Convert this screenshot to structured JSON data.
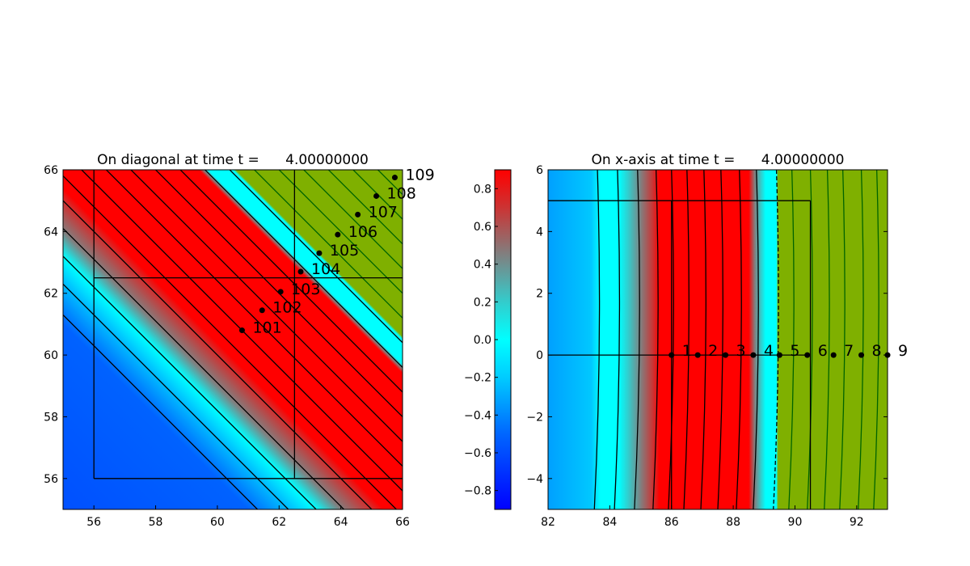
{
  "chart_data": [
    {
      "type": "heatmap",
      "title": "On diagonal at time t =      4.00000000",
      "xlim": [
        55,
        66
      ],
      "ylim": [
        55,
        66
      ],
      "xticks": [
        "56",
        "58",
        "60",
        "62",
        "64",
        "66"
      ],
      "xtick_values": [
        56,
        58,
        60,
        62,
        64,
        66
      ],
      "yticks": [
        "56",
        "58",
        "60",
        "62",
        "64",
        "66"
      ],
      "ytick_values": [
        56,
        58,
        60,
        62,
        64,
        66
      ],
      "field": "bands of constant x+y: blue below ~117, cyan ~118, red ~120-125.5, cyan ~126, green above ~126.5",
      "contour_levels_x_plus_y": [
        116.3,
        117.3,
        118.2,
        119.1,
        120.0,
        120.8,
        121.6,
        122.4,
        123.2,
        124.0,
        124.8,
        125.6,
        126.4,
        127.2,
        128.0,
        128.8,
        129.6,
        130.4,
        131.2
      ],
      "grid_lines": {
        "x": [
          56,
          62.5
        ],
        "y": [
          56,
          62.5
        ],
        "span": [
          56,
          66
        ]
      },
      "points": [
        {
          "label": "101",
          "x": 60.8,
          "y": 60.8
        },
        {
          "label": "102",
          "x": 61.45,
          "y": 61.45
        },
        {
          "label": "103",
          "x": 62.05,
          "y": 62.05
        },
        {
          "label": "104",
          "x": 62.7,
          "y": 62.7
        },
        {
          "label": "105",
          "x": 63.3,
          "y": 63.3
        },
        {
          "label": "106",
          "x": 63.9,
          "y": 63.9
        },
        {
          "label": "107",
          "x": 64.55,
          "y": 64.55
        },
        {
          "label": "108",
          "x": 65.15,
          "y": 65.15
        },
        {
          "label": "109",
          "x": 65.75,
          "y": 65.75
        }
      ]
    },
    {
      "type": "heatmap",
      "title": "On x-axis at time t =      4.00000000",
      "xlim": [
        82,
        93
      ],
      "ylim": [
        -5,
        6
      ],
      "xticks": [
        "82",
        "84",
        "86",
        "88",
        "90",
        "92"
      ],
      "xtick_values": [
        82,
        84,
        86,
        88,
        90,
        92
      ],
      "yticks": [
        "6",
        "4",
        "2",
        "0",
        "−2",
        "−4"
      ],
      "ytick_values": [
        6,
        4,
        2,
        0,
        -2,
        -4
      ],
      "contour_x_at_y0": [
        83.65,
        84.3,
        84.95,
        85.55,
        86.05,
        86.55,
        87.1,
        87.65,
        88.25,
        88.8,
        89.45,
        89.95,
        90.55,
        91.1,
        91.6,
        92.2,
        92.7
      ],
      "grid_lines": {
        "x": [
          86,
          90.5
        ],
        "y": [
          0,
          5
        ],
        "span_x": [
          82,
          90.5
        ],
        "span_y": [
          -5,
          5
        ]
      },
      "points": [
        {
          "label": "1",
          "x": 86.0,
          "y": 0
        },
        {
          "label": "2",
          "x": 86.85,
          "y": 0
        },
        {
          "label": "3",
          "x": 87.75,
          "y": 0
        },
        {
          "label": "4",
          "x": 88.65,
          "y": 0
        },
        {
          "label": "5",
          "x": 89.5,
          "y": 0
        },
        {
          "label": "6",
          "x": 90.4,
          "y": 0
        },
        {
          "label": "7",
          "x": 91.25,
          "y": 0
        },
        {
          "label": "8",
          "x": 92.15,
          "y": 0
        },
        {
          "label": "9",
          "x": 93.0,
          "y": 0
        }
      ],
      "colorbar": {
        "range": [
          -0.9,
          0.9
        ],
        "ticks": [
          "−0.8",
          "−0.6",
          "−0.4",
          "−0.2",
          "0.0",
          "0.2",
          "0.4",
          "0.6",
          "0.8"
        ],
        "tick_values": [
          -0.8,
          -0.6,
          -0.4,
          -0.2,
          0.0,
          0.2,
          0.4,
          0.6,
          0.8
        ],
        "colors": [
          "#0000ff",
          "#0066ff",
          "#00ccff",
          "#00ffff",
          "#33cccc",
          "#808080",
          "#cc3333",
          "#ff0000"
        ]
      }
    }
  ],
  "colors": {
    "green_region": "#7fb000",
    "red": "#ff0000",
    "cyan": "#00ffff",
    "blue": "#0060ff",
    "green_contour": "#006400"
  }
}
